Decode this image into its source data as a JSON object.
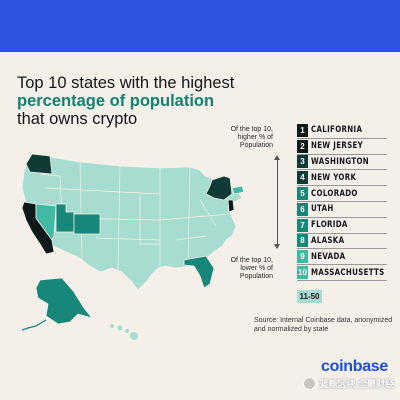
{
  "title": {
    "line1": "Top 10 states with the highest",
    "line2": "percentage of population",
    "line3": "that owns crypto"
  },
  "notes": {
    "top": "Of the top 10, higher % of Population",
    "bottom": "Of the top 10, lower % of Population"
  },
  "legend": [
    {
      "rank": "1",
      "state": "CALIFORNIA",
      "color": "#0c1b1a"
    },
    {
      "rank": "2",
      "state": "NEW JERSEY",
      "color": "#0c1b1a"
    },
    {
      "rank": "3",
      "state": "WASHINGTON",
      "color": "#0f3a35"
    },
    {
      "rank": "4",
      "state": "NEW YORK",
      "color": "#0f3a35"
    },
    {
      "rank": "5",
      "state": "COLORADO",
      "color": "#17877a"
    },
    {
      "rank": "6",
      "state": "UTAH",
      "color": "#17877a"
    },
    {
      "rank": "7",
      "state": "FLORIDA",
      "color": "#17877a"
    },
    {
      "rank": "8",
      "state": "ALASKA",
      "color": "#17877a"
    },
    {
      "rank": "9",
      "state": "NEVADA",
      "color": "#42b9a3"
    },
    {
      "rank": "10",
      "state": "MASSACHUSETTS",
      "color": "#42b9a3"
    }
  ],
  "rest_label": "11-50",
  "colors": {
    "rest": "#a6ddd0",
    "background": "#f4efe9",
    "header": "#2d53e0",
    "accent": "#14806f"
  },
  "source": "Source: Internal Coinbase data, anonymized and normalized by state",
  "brand": "coinbase",
  "watermark": "蓝鲸区块 全聚财经"
}
